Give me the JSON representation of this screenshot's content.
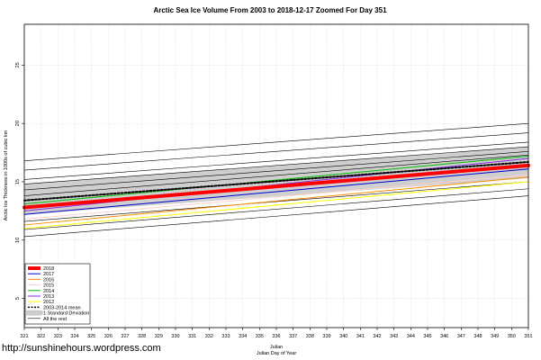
{
  "chart_data": {
    "type": "line",
    "title": "Arctic Sea Ice Volume From 2003 to 2018-12-17 Zoomed For Day 351",
    "xlabel": "Julian",
    "xlabel2": "Julian Day of Year",
    "ylabel": "Arctic Ice Thickness in 1000s of cubic km",
    "xlim": [
      321,
      351
    ],
    "ylim": [
      2.5,
      28.5
    ],
    "xticks": [
      321,
      322,
      323,
      324,
      325,
      326,
      327,
      328,
      329,
      330,
      331,
      332,
      333,
      334,
      335,
      336,
      337,
      338,
      339,
      340,
      341,
      342,
      343,
      344,
      345,
      346,
      347,
      348,
      349,
      350,
      351
    ],
    "yticks": [
      5,
      10,
      15,
      20,
      25
    ],
    "ytick_labels": [
      "5",
      "10",
      "15",
      "20",
      "25"
    ],
    "band": {
      "x": [
        321,
        351
      ],
      "lower": [
        12.2,
        15.3
      ],
      "upper": [
        14.8,
        18.0
      ]
    },
    "series": [
      {
        "name": "2018",
        "color": "#ff0000",
        "width": 4,
        "dash": "",
        "x": [
          321,
          351
        ],
        "y": [
          12.8,
          16.4
        ]
      },
      {
        "name": "2017",
        "color": "#0000cc",
        "width": 1,
        "dash": "",
        "x": [
          321,
          351
        ],
        "y": [
          12.2,
          16.1
        ]
      },
      {
        "name": "2016",
        "color": "#ff8c00",
        "width": 1,
        "dash": "",
        "x": [
          321,
          351
        ],
        "y": [
          11.3,
          15.4
        ]
      },
      {
        "name": "2015",
        "color": "#ffd0d0",
        "width": 1,
        "dash": "",
        "x": [
          321,
          351
        ],
        "y": [
          11.8,
          15.6
        ]
      },
      {
        "name": "2014",
        "color": "#00bb00",
        "width": 1,
        "dash": "",
        "x": [
          321,
          351
        ],
        "y": [
          13.1,
          17.2
        ]
      },
      {
        "name": "2013",
        "color": "#8a2be2",
        "width": 1,
        "dash": "",
        "x": [
          321,
          351
        ],
        "y": [
          12.5,
          17.0
        ]
      },
      {
        "name": "2012",
        "color": "#ffff00",
        "width": 1,
        "dash": "",
        "x": [
          321,
          351
        ],
        "y": [
          11.0,
          15.0
        ]
      },
      {
        "name": "2003-2014 mean",
        "color": "#000000",
        "width": 2,
        "dash": "2,2",
        "x": [
          321,
          351
        ],
        "y": [
          13.4,
          16.7
        ]
      },
      {
        "name": "",
        "color": "#000000",
        "width": 0.6,
        "dash": "",
        "x": [
          321,
          351
        ],
        "y": [
          16.8,
          20.0
        ]
      },
      {
        "name": "",
        "color": "#000000",
        "width": 0.6,
        "dash": "",
        "x": [
          321,
          351
        ],
        "y": [
          16.0,
          19.2
        ]
      },
      {
        "name": "",
        "color": "#000000",
        "width": 0.6,
        "dash": "",
        "x": [
          321,
          351
        ],
        "y": [
          15.2,
          18.4
        ]
      },
      {
        "name": "",
        "color": "#000000",
        "width": 0.6,
        "dash": "",
        "x": [
          321,
          351
        ],
        "y": [
          14.8,
          18.0
        ]
      },
      {
        "name": "",
        "color": "#000000",
        "width": 0.6,
        "dash": "",
        "x": [
          321,
          351
        ],
        "y": [
          14.3,
          17.6
        ]
      },
      {
        "name": "",
        "color": "#000000",
        "width": 0.6,
        "dash": "",
        "x": [
          321,
          351
        ],
        "y": [
          13.8,
          17.3
        ]
      },
      {
        "name": "",
        "color": "#000000",
        "width": 0.6,
        "dash": "",
        "x": [
          321,
          351
        ],
        "y": [
          11.6,
          15.0
        ]
      },
      {
        "name": "",
        "color": "#000000",
        "width": 0.6,
        "dash": "",
        "x": [
          321,
          351
        ],
        "y": [
          10.9,
          14.4
        ]
      },
      {
        "name": "",
        "color": "#000000",
        "width": 0.6,
        "dash": "",
        "x": [
          321,
          351
        ],
        "y": [
          10.3,
          13.8
        ]
      }
    ],
    "legend": {
      "placement": "bottom-left",
      "entries": [
        {
          "label": "2018",
          "color": "#ff0000",
          "kind": "line",
          "width": 4
        },
        {
          "label": "2017",
          "color": "#0000cc",
          "kind": "line",
          "width": 1
        },
        {
          "label": "2016",
          "color": "#ff8c00",
          "kind": "line",
          "width": 1
        },
        {
          "label": "2015",
          "color": "#ffd0d0",
          "kind": "line",
          "width": 1
        },
        {
          "label": "2014",
          "color": "#00bb00",
          "kind": "line",
          "width": 1
        },
        {
          "label": "2013",
          "color": "#8a2be2",
          "kind": "line",
          "width": 1
        },
        {
          "label": "2012",
          "color": "#ffff00",
          "kind": "line",
          "width": 1
        },
        {
          "label": "2003-2014 mean",
          "color": "#000000",
          "kind": "dash",
          "width": 1.5
        },
        {
          "label": "1 Standard Deviation",
          "color": "#cccccc",
          "kind": "band",
          "width": 6
        },
        {
          "label": "All the rest",
          "color": "#000000",
          "kind": "line",
          "width": 0.6
        }
      ]
    },
    "grid": true
  },
  "credit": "http://sunshinehours.wordpress.com"
}
